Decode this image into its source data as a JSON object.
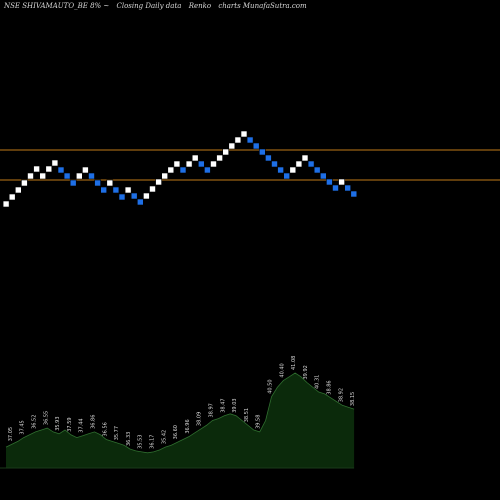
{
  "header": {
    "symbol": "NSE SHIVAMAUTO_BE 8% ~",
    "description": "Closing Daily data",
    "chart_kind": "Renko",
    "site": "charts MunafaSutra.com"
  },
  "colors": {
    "background": "#000000",
    "up_brick": "#ffffff",
    "down_brick": "#1e6fe6",
    "reference_line": "#c07a18",
    "volume_fill": "#0b2a0b",
    "volume_line": "#2f6e2f",
    "label_text": "#dcdcdc"
  },
  "chart_data": [
    {
      "type": "renko",
      "title": "",
      "reference_lines": [
        150,
        180
      ],
      "bricks": [
        {
          "x": 1,
          "y": 204,
          "dir": "up"
        },
        {
          "x": 2,
          "y": 197,
          "dir": "up"
        },
        {
          "x": 3,
          "y": 190,
          "dir": "up"
        },
        {
          "x": 4,
          "y": 183,
          "dir": "up"
        },
        {
          "x": 5,
          "y": 176,
          "dir": "up"
        },
        {
          "x": 6,
          "y": 169,
          "dir": "up"
        },
        {
          "x": 7,
          "y": 176,
          "dir": "up"
        },
        {
          "x": 8,
          "y": 169,
          "dir": "up"
        },
        {
          "x": 9,
          "y": 163,
          "dir": "up"
        },
        {
          "x": 10,
          "y": 170,
          "dir": "down"
        },
        {
          "x": 11,
          "y": 176,
          "dir": "down"
        },
        {
          "x": 12,
          "y": 183,
          "dir": "down"
        },
        {
          "x": 13,
          "y": 176,
          "dir": "up"
        },
        {
          "x": 14,
          "y": 170,
          "dir": "up"
        },
        {
          "x": 15,
          "y": 176,
          "dir": "down"
        },
        {
          "x": 16,
          "y": 183,
          "dir": "down"
        },
        {
          "x": 17,
          "y": 190,
          "dir": "down"
        },
        {
          "x": 18,
          "y": 183,
          "dir": "up"
        },
        {
          "x": 19,
          "y": 190,
          "dir": "down"
        },
        {
          "x": 20,
          "y": 197,
          "dir": "down"
        },
        {
          "x": 21,
          "y": 190,
          "dir": "up"
        },
        {
          "x": 22,
          "y": 196,
          "dir": "down"
        },
        {
          "x": 23,
          "y": 202,
          "dir": "down"
        },
        {
          "x": 24,
          "y": 196,
          "dir": "up"
        },
        {
          "x": 25,
          "y": 189,
          "dir": "up"
        },
        {
          "x": 26,
          "y": 182,
          "dir": "up"
        },
        {
          "x": 27,
          "y": 176,
          "dir": "up"
        },
        {
          "x": 28,
          "y": 170,
          "dir": "up"
        },
        {
          "x": 29,
          "y": 164,
          "dir": "up"
        },
        {
          "x": 30,
          "y": 170,
          "dir": "down"
        },
        {
          "x": 31,
          "y": 164,
          "dir": "up"
        },
        {
          "x": 32,
          "y": 158,
          "dir": "up"
        },
        {
          "x": 33,
          "y": 164,
          "dir": "down"
        },
        {
          "x": 34,
          "y": 170,
          "dir": "down"
        },
        {
          "x": 35,
          "y": 164,
          "dir": "up"
        },
        {
          "x": 36,
          "y": 158,
          "dir": "up"
        },
        {
          "x": 37,
          "y": 152,
          "dir": "up"
        },
        {
          "x": 38,
          "y": 146,
          "dir": "up"
        },
        {
          "x": 39,
          "y": 140,
          "dir": "up"
        },
        {
          "x": 40,
          "y": 134,
          "dir": "up"
        },
        {
          "x": 41,
          "y": 140,
          "dir": "down"
        },
        {
          "x": 42,
          "y": 146,
          "dir": "down"
        },
        {
          "x": 43,
          "y": 152,
          "dir": "down"
        },
        {
          "x": 44,
          "y": 158,
          "dir": "down"
        },
        {
          "x": 45,
          "y": 164,
          "dir": "down"
        },
        {
          "x": 46,
          "y": 170,
          "dir": "down"
        },
        {
          "x": 47,
          "y": 176,
          "dir": "down"
        },
        {
          "x": 48,
          "y": 170,
          "dir": "up"
        },
        {
          "x": 49,
          "y": 164,
          "dir": "up"
        },
        {
          "x": 50,
          "y": 158,
          "dir": "up"
        },
        {
          "x": 51,
          "y": 164,
          "dir": "down"
        },
        {
          "x": 52,
          "y": 170,
          "dir": "down"
        },
        {
          "x": 53,
          "y": 176,
          "dir": "down"
        },
        {
          "x": 54,
          "y": 182,
          "dir": "down"
        },
        {
          "x": 55,
          "y": 188,
          "dir": "down"
        },
        {
          "x": 56,
          "y": 182,
          "dir": "up"
        },
        {
          "x": 57,
          "y": 188,
          "dir": "down"
        },
        {
          "x": 58,
          "y": 194,
          "dir": "down"
        }
      ]
    },
    {
      "type": "area",
      "title": "",
      "x": [
        1,
        2,
        3,
        4,
        5,
        6,
        7,
        8,
        9,
        10,
        11,
        12,
        13,
        14,
        15,
        16,
        17,
        18,
        19,
        20,
        21,
        22,
        23,
        24,
        25,
        26,
        27,
        28,
        29,
        30,
        31,
        32,
        33,
        34,
        35,
        36,
        37,
        38,
        39,
        40,
        41,
        42,
        43,
        44,
        45,
        46,
        47,
        48,
        49,
        50,
        51,
        52,
        53,
        54,
        55,
        56,
        57,
        58,
        59,
        60
      ],
      "values": [
        22,
        25,
        28,
        32,
        35,
        38,
        40,
        42,
        38,
        36,
        40,
        35,
        32,
        34,
        36,
        38,
        35,
        30,
        28,
        26,
        24,
        20,
        18,
        17,
        16,
        17,
        19,
        22,
        24,
        27,
        30,
        33,
        37,
        41,
        45,
        50,
        52,
        55,
        57,
        55,
        50,
        45,
        40,
        38,
        50,
        75,
        85,
        92,
        96,
        100,
        96,
        90,
        85,
        80,
        78,
        74,
        70,
        66,
        64,
        62
      ],
      "value_labels": [
        {
          "x": 2,
          "text": "37.05"
        },
        {
          "x": 4,
          "text": "37.45"
        },
        {
          "x": 6,
          "text": "36.52"
        },
        {
          "x": 8,
          "text": "36.55"
        },
        {
          "x": 10,
          "text": "35.93"
        },
        {
          "x": 12,
          "text": "37.59"
        },
        {
          "x": 14,
          "text": "37.44"
        },
        {
          "x": 16,
          "text": "36.86"
        },
        {
          "x": 18,
          "text": "36.56"
        },
        {
          "x": 20,
          "text": "35.77"
        },
        {
          "x": 22,
          "text": "36.33"
        },
        {
          "x": 24,
          "text": "35.53"
        },
        {
          "x": 26,
          "text": "36.17"
        },
        {
          "x": 28,
          "text": "35.42"
        },
        {
          "x": 30,
          "text": "36.60"
        },
        {
          "x": 32,
          "text": "36.96"
        },
        {
          "x": 34,
          "text": "38.09"
        },
        {
          "x": 36,
          "text": "38.97"
        },
        {
          "x": 38,
          "text": "38.47"
        },
        {
          "x": 40,
          "text": "39.03"
        },
        {
          "x": 42,
          "text": "38.51"
        },
        {
          "x": 44,
          "text": "39.58"
        },
        {
          "x": 46,
          "text": "40.50"
        },
        {
          "x": 48,
          "text": "40.40"
        },
        {
          "x": 50,
          "text": "41.08"
        },
        {
          "x": 52,
          "text": "39.92"
        },
        {
          "x": 54,
          "text": "40.31"
        },
        {
          "x": 56,
          "text": "38.86"
        },
        {
          "x": 58,
          "text": "38.92"
        },
        {
          "x": 60,
          "text": "38.15"
        }
      ]
    }
  ]
}
